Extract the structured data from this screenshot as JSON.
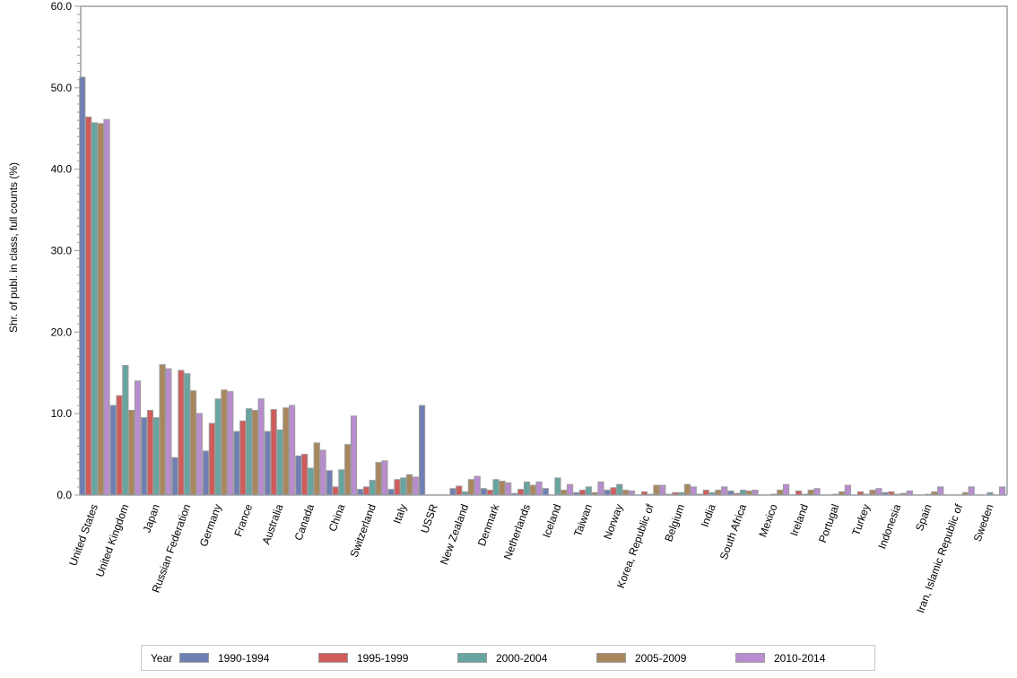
{
  "chart_data": {
    "type": "bar",
    "title": "",
    "xlabel": "",
    "ylabel": "Shr. of publ. in class, full counts (%)",
    "ylim": [
      0,
      60
    ],
    "yticks": [
      "0.0",
      "10.0",
      "20.0",
      "30.0",
      "40.0",
      "50.0",
      "60.0"
    ],
    "grid": false,
    "legend_position": "bottom",
    "legend_title": "Year",
    "categories": [
      "United States",
      "United Kingdom",
      "Japan",
      "Russian Federation",
      "Germany",
      "France",
      "Australia",
      "Canada",
      "China",
      "Switzerland",
      "Italy",
      "USSR",
      "New Zealand",
      "Denmark",
      "Netherlands",
      "Iceland",
      "Taiwan",
      "Norway",
      "Korea, Republic of",
      "Belgium",
      "India",
      "South Africa",
      "Mexico",
      "Ireland",
      "Portugal",
      "Turkey",
      "Indonesia",
      "Spain",
      "Iran, Islamic Republic of",
      "Sweden"
    ],
    "series": [
      {
        "name": "1990-1994",
        "color": "#6f7eb3",
        "values": [
          51.3,
          11.0,
          9.5,
          4.6,
          5.4,
          7.8,
          7.8,
          4.8,
          3.0,
          0.7,
          0.7,
          11.0,
          0.8,
          0.8,
          0.2,
          0.8,
          0.3,
          0.6,
          0.0,
          0.1,
          0.1,
          0.5,
          0.0,
          0.0,
          0.0,
          0.0,
          0.3,
          0.0,
          0.0,
          0.0
        ]
      },
      {
        "name": "1995-1999",
        "color": "#d05b5b",
        "values": [
          46.4,
          12.2,
          10.4,
          15.3,
          8.8,
          9.1,
          10.5,
          5.0,
          1.0,
          1.0,
          1.9,
          0.0,
          1.1,
          0.6,
          0.7,
          0.0,
          0.6,
          0.9,
          0.4,
          0.3,
          0.6,
          0.2,
          0.0,
          0.5,
          0.0,
          0.4,
          0.4,
          0.0,
          0.0,
          0.0
        ]
      },
      {
        "name": "2000-2004",
        "color": "#66a5a0",
        "values": [
          45.7,
          15.9,
          9.5,
          14.9,
          11.8,
          10.6,
          8.0,
          3.3,
          3.1,
          1.8,
          2.1,
          0.0,
          0.4,
          1.9,
          1.6,
          2.1,
          1.0,
          1.3,
          0.1,
          0.3,
          0.3,
          0.6,
          0.1,
          0.1,
          0.1,
          0.1,
          0.1,
          0.1,
          0.0,
          0.3
        ]
      },
      {
        "name": "2005-2009",
        "color": "#a9875d",
        "values": [
          45.6,
          10.4,
          16.0,
          12.8,
          12.9,
          10.4,
          10.7,
          6.4,
          6.2,
          4.0,
          2.5,
          0.0,
          1.9,
          1.7,
          1.2,
          0.6,
          0.3,
          0.6,
          1.2,
          1.3,
          0.6,
          0.5,
          0.6,
          0.6,
          0.4,
          0.6,
          0.2,
          0.4,
          0.3,
          0.0
        ]
      },
      {
        "name": "2010-2014",
        "color": "#b88cce",
        "values": [
          46.1,
          14.0,
          15.5,
          10.0,
          12.7,
          11.8,
          11.0,
          5.5,
          9.7,
          4.2,
          2.2,
          0.0,
          2.3,
          1.5,
          1.6,
          1.3,
          1.6,
          0.5,
          1.2,
          1.0,
          1.0,
          0.6,
          1.3,
          0.8,
          1.2,
          0.8,
          0.5,
          1.0,
          1.0,
          1.0
        ]
      }
    ]
  },
  "legend": {
    "title": "Year",
    "items": [
      {
        "label": "1990-1994",
        "color": "#6f7eb3"
      },
      {
        "label": "1995-1999",
        "color": "#d05b5b"
      },
      {
        "label": "2000-2004",
        "color": "#66a5a0"
      },
      {
        "label": "2005-2009",
        "color": "#a9875d"
      },
      {
        "label": "2010-2014",
        "color": "#b88cce"
      }
    ]
  }
}
